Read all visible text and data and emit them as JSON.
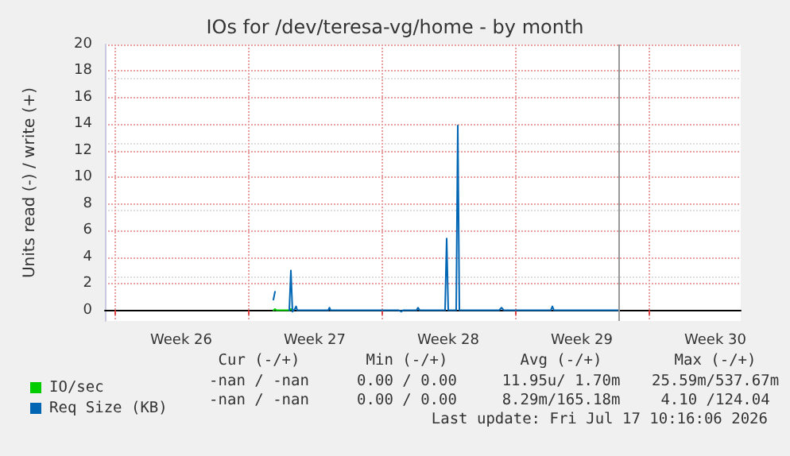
{
  "chart_data": {
    "type": "line",
    "title": "IOs for /dev/teresa-vg/home - by month",
    "ylabel": "Units read (-) / write (+)",
    "xlim": [
      "2026-06-20T12:00",
      "2026-07-23T20:00"
    ],
    "ylim": [
      -0.8,
      20
    ],
    "xticks": [
      {
        "value": "2026-06-21",
        "label": null
      },
      {
        "value": "2026-06-24T12:00",
        "label": "Week 26"
      },
      {
        "value": "2026-06-28",
        "label": null
      },
      {
        "value": "2026-07-01T12:00",
        "label": "Week 27"
      },
      {
        "value": "2026-07-05",
        "label": null
      },
      {
        "value": "2026-07-08T12:00",
        "label": "Week 28"
      },
      {
        "value": "2026-07-12",
        "label": null
      },
      {
        "value": "2026-07-15T12:00",
        "label": "Week 29"
      },
      {
        "value": "2026-07-19",
        "label": null
      },
      {
        "value": "2026-07-22T12:00",
        "label": "Week 30"
      }
    ],
    "yticks": [
      0,
      2,
      4,
      6,
      8,
      10,
      12,
      14,
      16,
      18,
      20
    ],
    "grid": true,
    "legend": "bottom left",
    "marker": "none",
    "series": [
      {
        "name": "IO/sec",
        "color": "#00cc00",
        "x": [
          "2026-06-29T08:00",
          "2026-06-29T10:00",
          "2026-06-29T12:00",
          "2026-06-30T04:00",
          "2026-06-30T06:00",
          "2026-06-30T08:00"
        ],
        "values": [
          0,
          0.1,
          0,
          0,
          0.1,
          0
        ]
      },
      {
        "name": "Req Size (KB)",
        "color": "#0066b3",
        "x": [
          "2026-06-29T08:00",
          "2026-06-29T10:00",
          "2026-06-29T12:00",
          "2026-06-30T04:00",
          "2026-06-30T06:00",
          "2026-06-30T08:00",
          "2026-06-30T11:00",
          "2026-06-30T12:30",
          "2026-06-30T14:00",
          "2026-07-02T05:00",
          "2026-07-02T06:30",
          "2026-07-02T08:00",
          "2026-07-05T22:00",
          "2026-07-06T01:00",
          "2026-07-06T03:00",
          "2026-07-06T20:00",
          "2026-07-06T22:00",
          "2026-07-07T00:00",
          "2026-07-08T08:00",
          "2026-07-08T10:00",
          "2026-07-08T12:00",
          "2026-07-08T22:00",
          "2026-07-09T00:00",
          "2026-07-09T02:00",
          "2026-07-11T04:00",
          "2026-07-11T07:00",
          "2026-07-11T10:00",
          "2026-07-13T21:00",
          "2026-07-13T23:00",
          "2026-07-14T01:00",
          "2026-07-17T10:00"
        ],
        "values": [
          0.8,
          1.4,
          null,
          0,
          3.0,
          -0.1,
          0.1,
          0.3,
          0,
          0,
          0.2,
          0,
          0,
          -0.1,
          0,
          0,
          0.2,
          0,
          0,
          5.4,
          0,
          0,
          13.9,
          0,
          0,
          0.2,
          0,
          0,
          0.3,
          0,
          0
        ]
      }
    ],
    "ref_lines": [
      {
        "axis": "x",
        "value": "2026-07-17T10:16",
        "color": "#999999"
      }
    ],
    "annotations": [
      "Cur (-/+)",
      "Min (-/+)",
      "Avg (-/+)",
      "Max (-/+)",
      "-nan / -nan",
      "0.00 / 0.00",
      "11.95u/ 1.70m",
      "25.59m/537.67m",
      "-nan / -nan",
      "0.00 / 0.00",
      "8.29m/165.18m",
      "4.10 /124.04",
      "Last update: Fri Jul 17 10:16:06 2026"
    ]
  }
}
